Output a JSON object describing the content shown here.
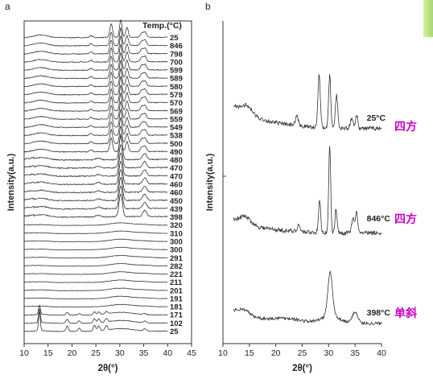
{
  "chart_data": [
    {
      "panel_label": "a",
      "type": "line",
      "title": "",
      "xlabel": "2θ(°)",
      "ylabel": "Intensity(a.u.)",
      "xlim": [
        10,
        45
      ],
      "xticks": [
        10,
        15,
        20,
        25,
        30,
        35,
        40,
        45
      ],
      "legend_title": "Temp.(°C)",
      "series_labels": [
        "25",
        "846",
        "798",
        "700",
        "599",
        "589",
        "580",
        "579",
        "570",
        "569",
        "559",
        "549",
        "538",
        "500",
        "490",
        "480",
        "470",
        "470",
        "460",
        "460",
        "450",
        "439",
        "398",
        "320",
        "310",
        "300",
        "300",
        "291",
        "282",
        "221",
        "211",
        "201",
        "191",
        "181",
        "171",
        "102",
        "25"
      ],
      "peaks_tetragonal": [
        28.2,
        30.2,
        31.5,
        34.6,
        35.3
      ],
      "peaks_cubic_region": [
        30.2,
        35.2
      ],
      "peaks_monoclinic": [
        13.2,
        19.0,
        21.5,
        24.7,
        25.6,
        27.2
      ],
      "grid": false
    },
    {
      "panel_label": "b",
      "type": "line",
      "title": "",
      "xlabel": "2θ(°)",
      "ylabel": "Intensity(a.u.)",
      "xlim": [
        10,
        40
      ],
      "xticks": [
        10,
        15,
        20,
        25,
        30,
        35,
        40
      ],
      "series": [
        {
          "name": "25°C",
          "phase_note": "四方",
          "peaks": [
            24.0,
            28.2,
            30.2,
            31.5,
            34.4,
            35.3
          ]
        },
        {
          "name": "846°C",
          "phase_note": "四方",
          "peaks": [
            24.3,
            28.3,
            30.2,
            31.4,
            34.6,
            35.3
          ]
        },
        {
          "name": "398°C",
          "phase_note": "单斜",
          "peaks": [
            30.3,
            35.0
          ]
        }
      ],
      "grid": false
    }
  ],
  "colors": {
    "line": "#333333",
    "annotation": "#c800c8",
    "accent": "#a8d870"
  }
}
